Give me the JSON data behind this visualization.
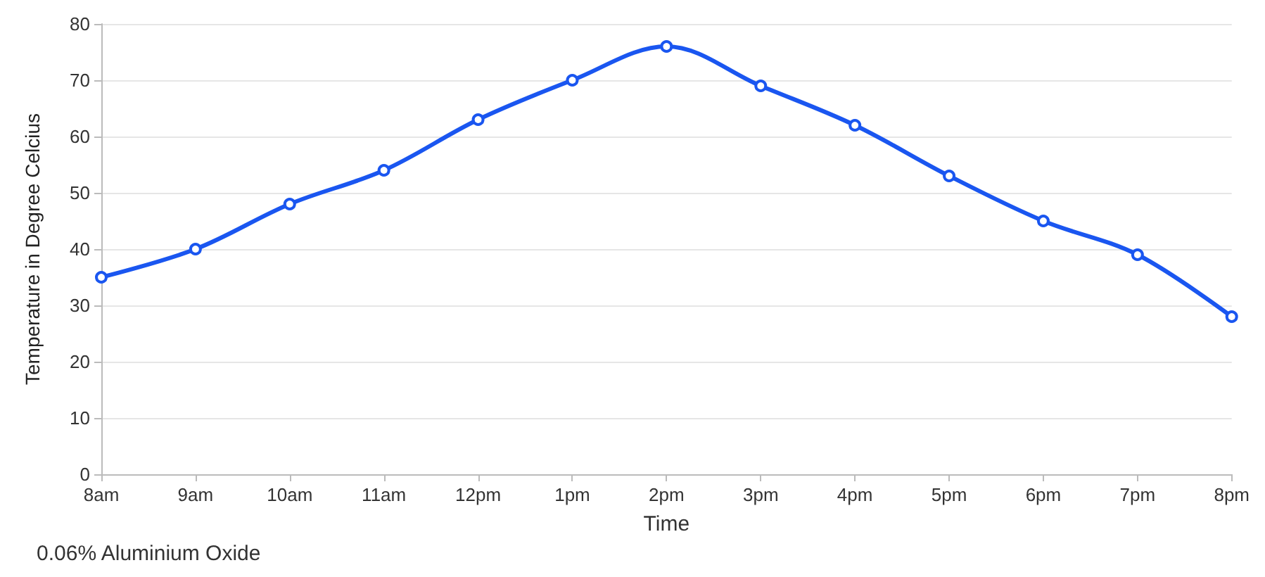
{
  "chart_data": {
    "type": "line",
    "xlabel": "Time",
    "ylabel": "Temperature in Degree Celcius",
    "categories": [
      "8am",
      "9am",
      "10am",
      "11am",
      "12pm",
      "1pm",
      "2pm",
      "3pm",
      "4pm",
      "5pm",
      "6pm",
      "7pm",
      "8pm"
    ],
    "series": [
      {
        "color": "#1a56f0",
        "values": [
          35,
          40,
          48,
          54,
          63,
          70,
          76,
          69,
          62,
          53,
          45,
          39,
          28
        ]
      }
    ],
    "ylim": [
      0,
      80
    ],
    "yticks": [
      0,
      10,
      20,
      30,
      40,
      50,
      60,
      70,
      80
    ],
    "grid": "y",
    "marker": "circle",
    "line_style": "solid",
    "annotations": [
      "0.06% Aluminium Oxide"
    ]
  }
}
